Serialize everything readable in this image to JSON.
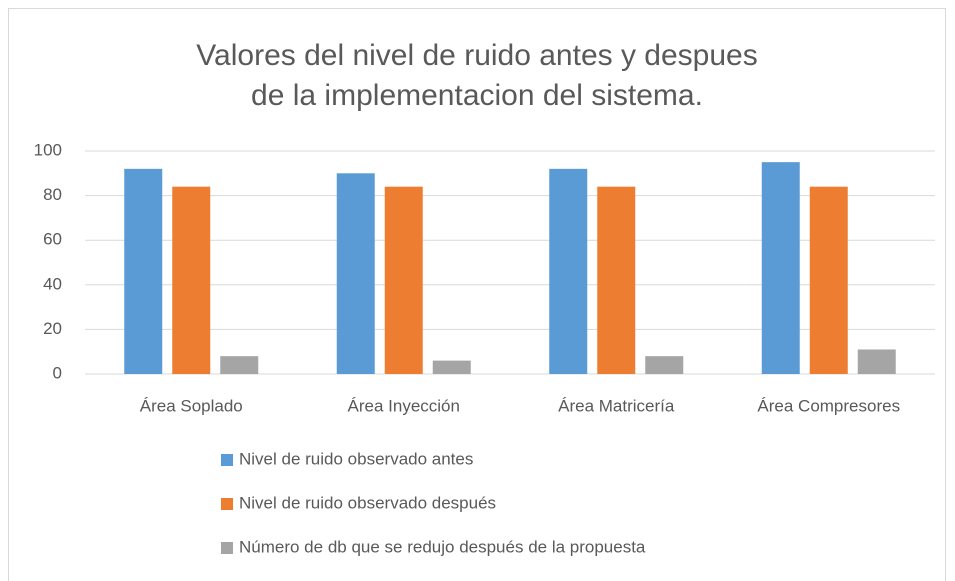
{
  "chart_data": {
    "type": "bar",
    "title": "Valores del nivel de ruido antes y despues de la implementacion del sistema.",
    "categories": [
      "Área Soplado",
      "Área Inyección",
      "Área Matricería",
      "Área Compresores"
    ],
    "series": [
      {
        "name": "Nivel de ruido observado antes",
        "color": "#5b9bd5",
        "values": [
          92,
          90,
          92,
          95
        ]
      },
      {
        "name": "Nivel de ruido observado después",
        "color": "#ed7d31",
        "values": [
          84,
          84,
          84,
          84
        ]
      },
      {
        "name": "Número de db que se redujo después de la propuesta",
        "color": "#a5a5a5",
        "values": [
          8,
          6,
          8,
          11
        ]
      }
    ],
    "ylim": [
      0,
      100
    ],
    "yticks": [
      0,
      20,
      40,
      60,
      80,
      100
    ],
    "grid": true,
    "legend": "bottom"
  }
}
